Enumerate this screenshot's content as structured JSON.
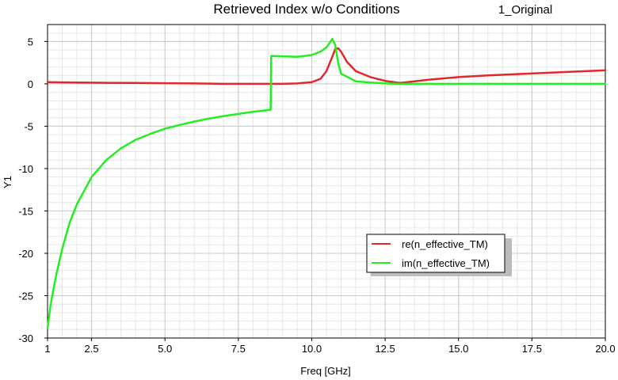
{
  "chart_data": {
    "type": "line",
    "title": "Retrieved Index w/o Conditions",
    "subtitle": "1_Original",
    "xlabel": "Freq [GHz]",
    "ylabel": "Y1",
    "xlim": [
      1,
      20
    ],
    "ylim": [
      -30,
      7
    ],
    "xticks": [
      "1",
      "2.5",
      "5.0",
      "7.5",
      "10.0",
      "12.5",
      "15.0",
      "17.5",
      "20.0"
    ],
    "xtick_values": [
      1,
      2.5,
      5,
      7.5,
      10,
      12.5,
      15,
      17.5,
      20
    ],
    "yticks": [
      "5",
      "0",
      "-5",
      "-10",
      "-15",
      "-20",
      "-25",
      "-30"
    ],
    "ytick_values": [
      5,
      0,
      -5,
      -10,
      -15,
      -20,
      -25,
      -30
    ],
    "grid": true,
    "legend_position": "center-right",
    "series": [
      {
        "name": "re(n_effective_TM)",
        "color": "#e0282d",
        "x": [
          1,
          2,
          3,
          4,
          5,
          6,
          7,
          8,
          8.6,
          9,
          9.5,
          10,
          10.3,
          10.5,
          10.7,
          10.8,
          10.9,
          11,
          11.2,
          11.5,
          12,
          12.5,
          13,
          13.5,
          14,
          15,
          16,
          17,
          18,
          19,
          20
        ],
        "values": [
          0.2,
          0.15,
          0.12,
          0.1,
          0.08,
          0.05,
          0.0,
          0.0,
          0.0,
          0.0,
          0.05,
          0.2,
          0.6,
          1.5,
          3.2,
          4.1,
          4.2,
          3.8,
          2.6,
          1.5,
          0.8,
          0.35,
          0.1,
          0.3,
          0.5,
          0.8,
          1.0,
          1.15,
          1.3,
          1.45,
          1.6
        ]
      },
      {
        "name": "im(n_effective_TM)",
        "color": "#22ee22",
        "x": [
          1,
          1.05,
          1.1,
          1.2,
          1.3,
          1.5,
          1.75,
          2,
          2.5,
          3,
          3.5,
          4,
          4.5,
          5,
          5.5,
          6,
          6.5,
          7,
          7.5,
          8,
          8.5,
          8.6,
          8.62,
          9,
          9.5,
          10,
          10.3,
          10.5,
          10.7,
          10.8,
          10.9,
          11,
          11.5,
          12,
          12.5,
          13,
          14,
          16,
          18,
          20
        ],
        "values": [
          -28.8,
          -27.5,
          -26.2,
          -24.3,
          -22.5,
          -19.5,
          -16.4,
          -14.2,
          -11.0,
          -9.0,
          -7.6,
          -6.6,
          -5.9,
          -5.3,
          -4.85,
          -4.45,
          -4.1,
          -3.8,
          -3.55,
          -3.3,
          -3.1,
          -3.05,
          3.3,
          3.25,
          3.2,
          3.4,
          3.8,
          4.3,
          5.3,
          4.6,
          2.5,
          1.2,
          0.3,
          0.15,
          0.05,
          0.0,
          0.0,
          0.0,
          0.0,
          0.0
        ]
      }
    ]
  }
}
